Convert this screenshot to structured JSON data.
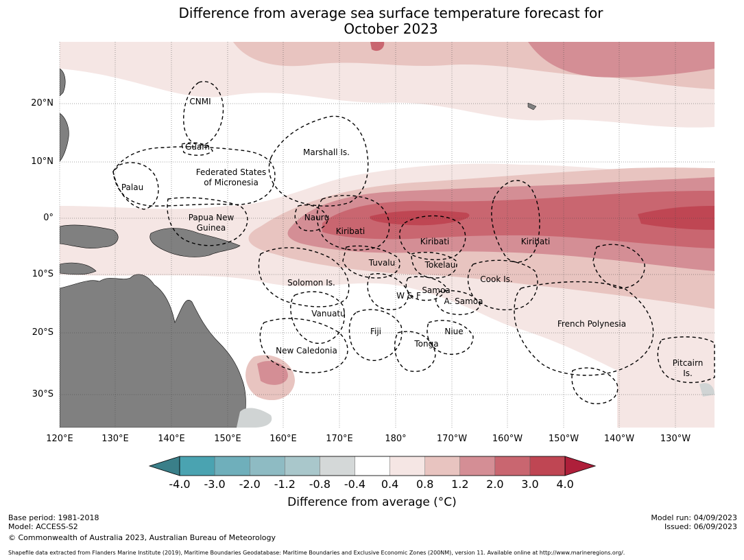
{
  "title": {
    "line1": "Difference from average sea surface temperature forecast for",
    "line2": "October 2023"
  },
  "lat_ticks": [
    "20°N",
    "10°N",
    "0°",
    "10°S",
    "20°S",
    "30°S"
  ],
  "lon_ticks": [
    "120°E",
    "130°E",
    "140°E",
    "150°E",
    "160°E",
    "170°E",
    "180°",
    "170°W",
    "160°W",
    "150°W",
    "140°W",
    "130°W"
  ],
  "regions": [
    "CNMI",
    "Guam",
    "Marshall Is.",
    "Federated States",
    "of Micronesia",
    "Palau",
    "Papua New",
    "Guinea",
    "Nauru",
    "Kiribati",
    "Kiribati",
    "Kiribati",
    "Tuvalu",
    "Tokelau",
    "Solomon Is.",
    "Cook Is.",
    "Samoa",
    "W & F",
    "A. Samoa",
    "Vanuatu",
    "Fiji",
    "Niue",
    "French Polynesia",
    "Tonga",
    "New Caledonia",
    "Pitcairn",
    "Is."
  ],
  "colorbar": {
    "labels": [
      "-4.0",
      "-3.0",
      "-2.0",
      "-1.2",
      "-0.8",
      "-0.4",
      "0.4",
      "0.8",
      "1.2",
      "2.0",
      "3.0",
      "4.0"
    ],
    "colors": {
      "below_min": "#3a7f89",
      "bins": [
        "#4aa3b1",
        "#6fafbb",
        "#8ebbc3",
        "#a9c7cb",
        "#d4d8d8",
        "#ffffff",
        "#f5e6e4",
        "#e8c4c0",
        "#d48e95",
        "#c96670",
        "#bf4653"
      ],
      "above_max": "#ae1f3a"
    },
    "title": "Difference from average (°C)"
  },
  "colors": {
    "land": "#808080",
    "ice": "#d0d4d4"
  },
  "footer": {
    "base_period": "Base period: 1981-2018",
    "model": "Model: ACCESS-S2",
    "copyright": "© Commonwealth of Australia 2023, Australian Bureau of Meteorology",
    "model_run": "Model run: 04/09/2023",
    "issued": "Issued: 06/09/2023",
    "shapefile": "Shapefile data extracted from Flanders Marine Institute (2019), Maritime Boundaries Geodatabase: Maritime Boundaries and Exclusive Economic Zones (200NM), version 11. Available online at http://www.marineregions.org/."
  }
}
